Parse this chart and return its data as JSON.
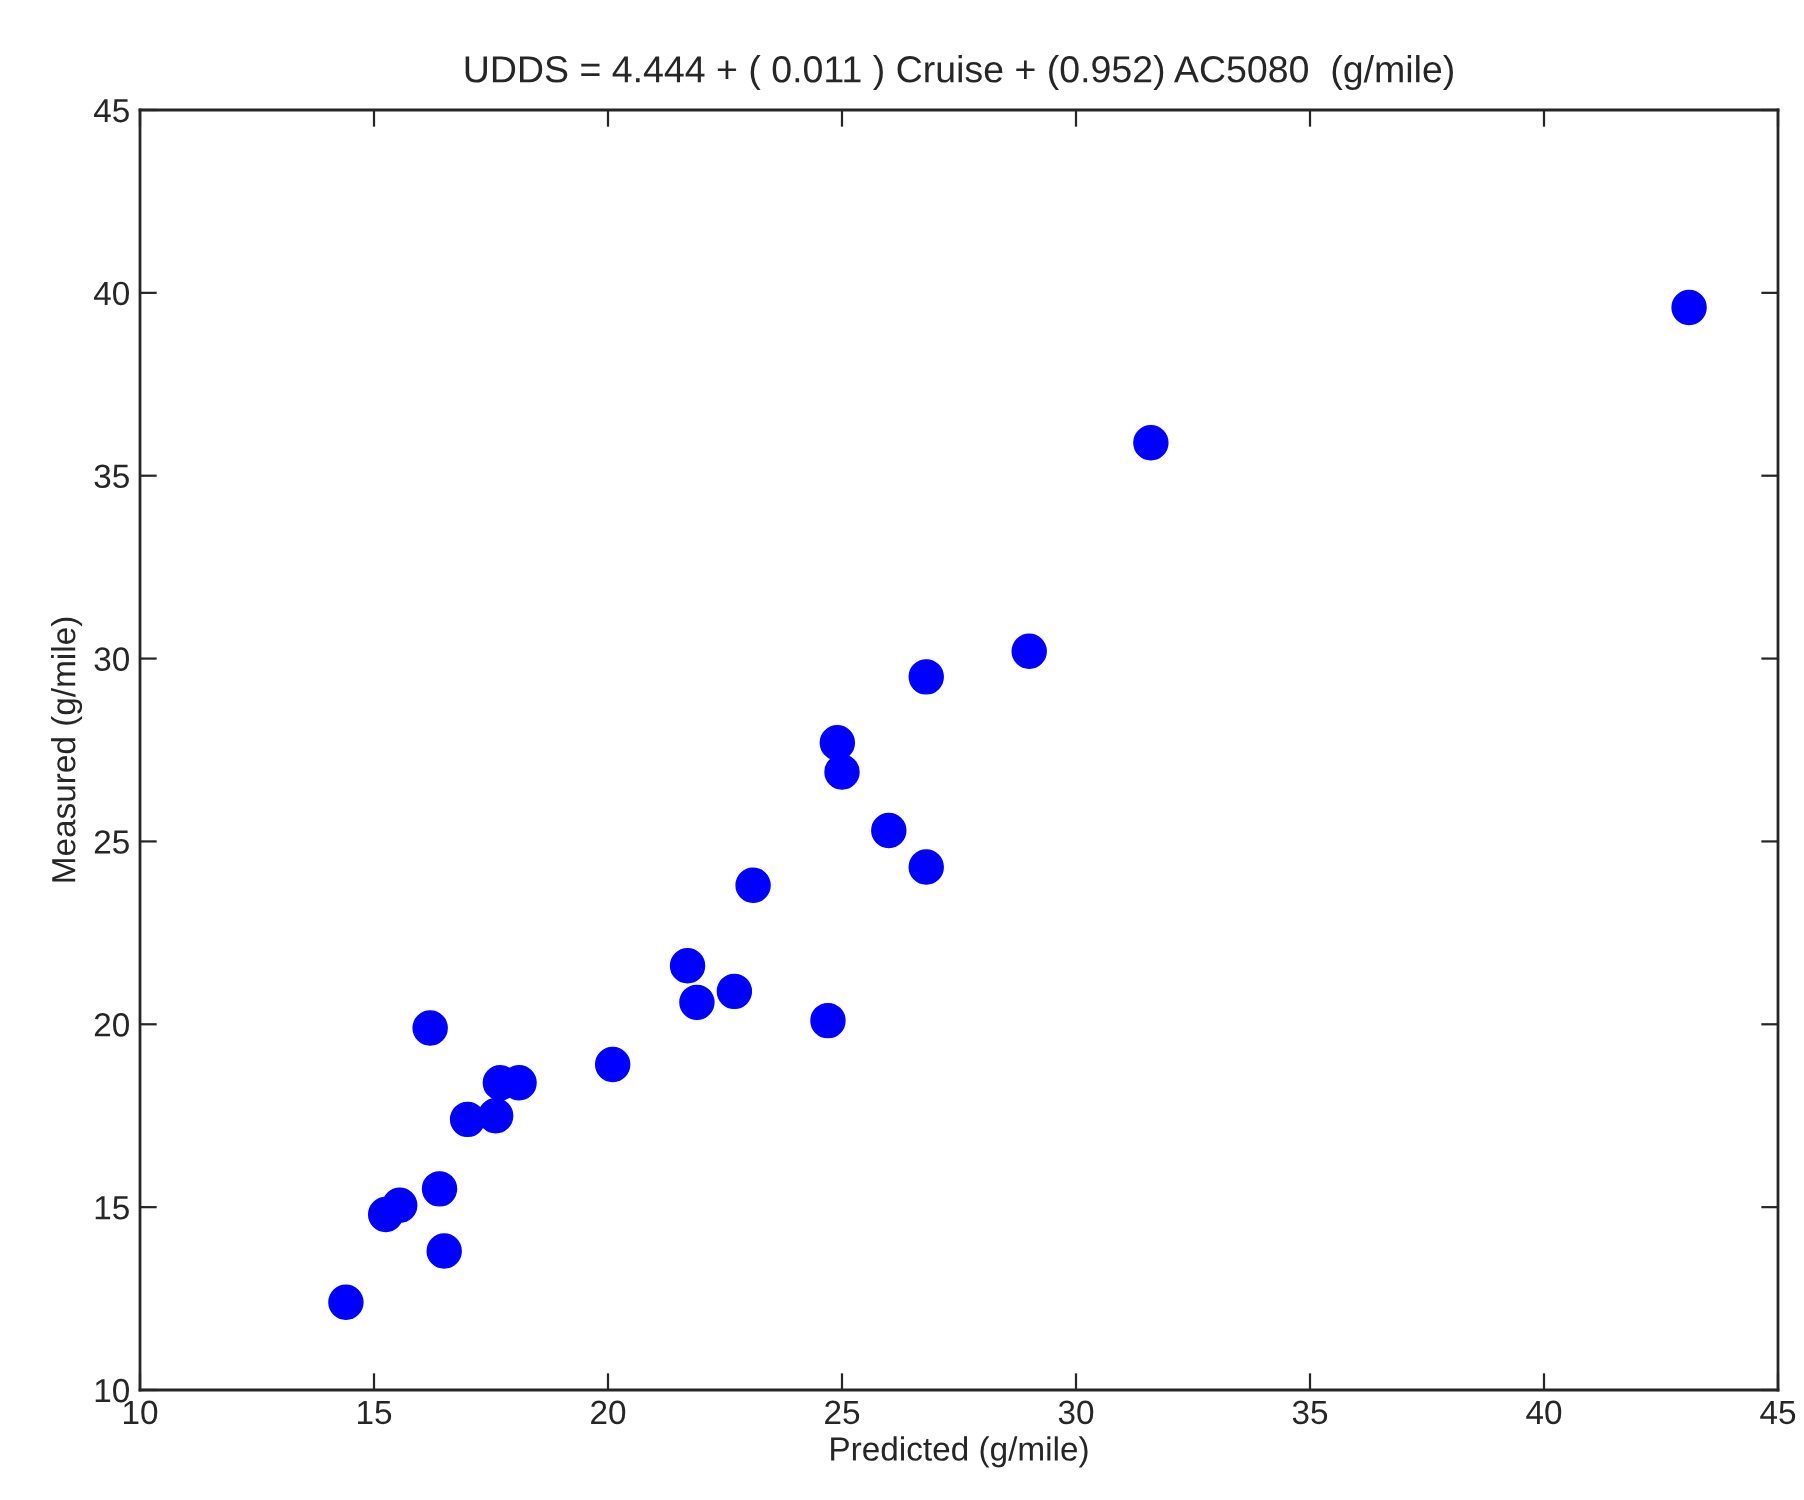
{
  "chart_data": {
    "type": "scatter",
    "title": "UDDS = 4.444 + ( 0.011 ) Cruise + (0.952) AC5080  (g/mile)",
    "xlabel": "Predicted (g/mile)",
    "ylabel": "Measured (g/mile)",
    "x": [
      14.4,
      15.25,
      15.55,
      16.2,
      16.4,
      16.5,
      17.0,
      17.6,
      17.7,
      18.1,
      20.1,
      21.7,
      21.9,
      22.7,
      23.1,
      24.7,
      24.9,
      25.0,
      26.0,
      26.8,
      26.8,
      29.0,
      31.6,
      43.1
    ],
    "values": [
      12.4,
      14.8,
      15.05,
      19.9,
      15.5,
      13.8,
      17.4,
      17.5,
      18.4,
      18.4,
      18.9,
      21.6,
      20.6,
      20.9,
      23.8,
      20.1,
      27.7,
      26.9,
      25.3,
      24.3,
      29.5,
      30.2,
      35.9,
      39.6
    ],
    "color": "#0000ff",
    "marker": "circle",
    "xlim": [
      10,
      45
    ],
    "xticks": [
      10,
      15,
      20,
      25,
      30,
      35,
      40,
      45
    ],
    "ylim": [
      10,
      45
    ],
    "yticks": [
      10,
      15,
      20,
      25,
      30,
      35,
      40,
      45
    ],
    "grid": false,
    "legend": false
  }
}
